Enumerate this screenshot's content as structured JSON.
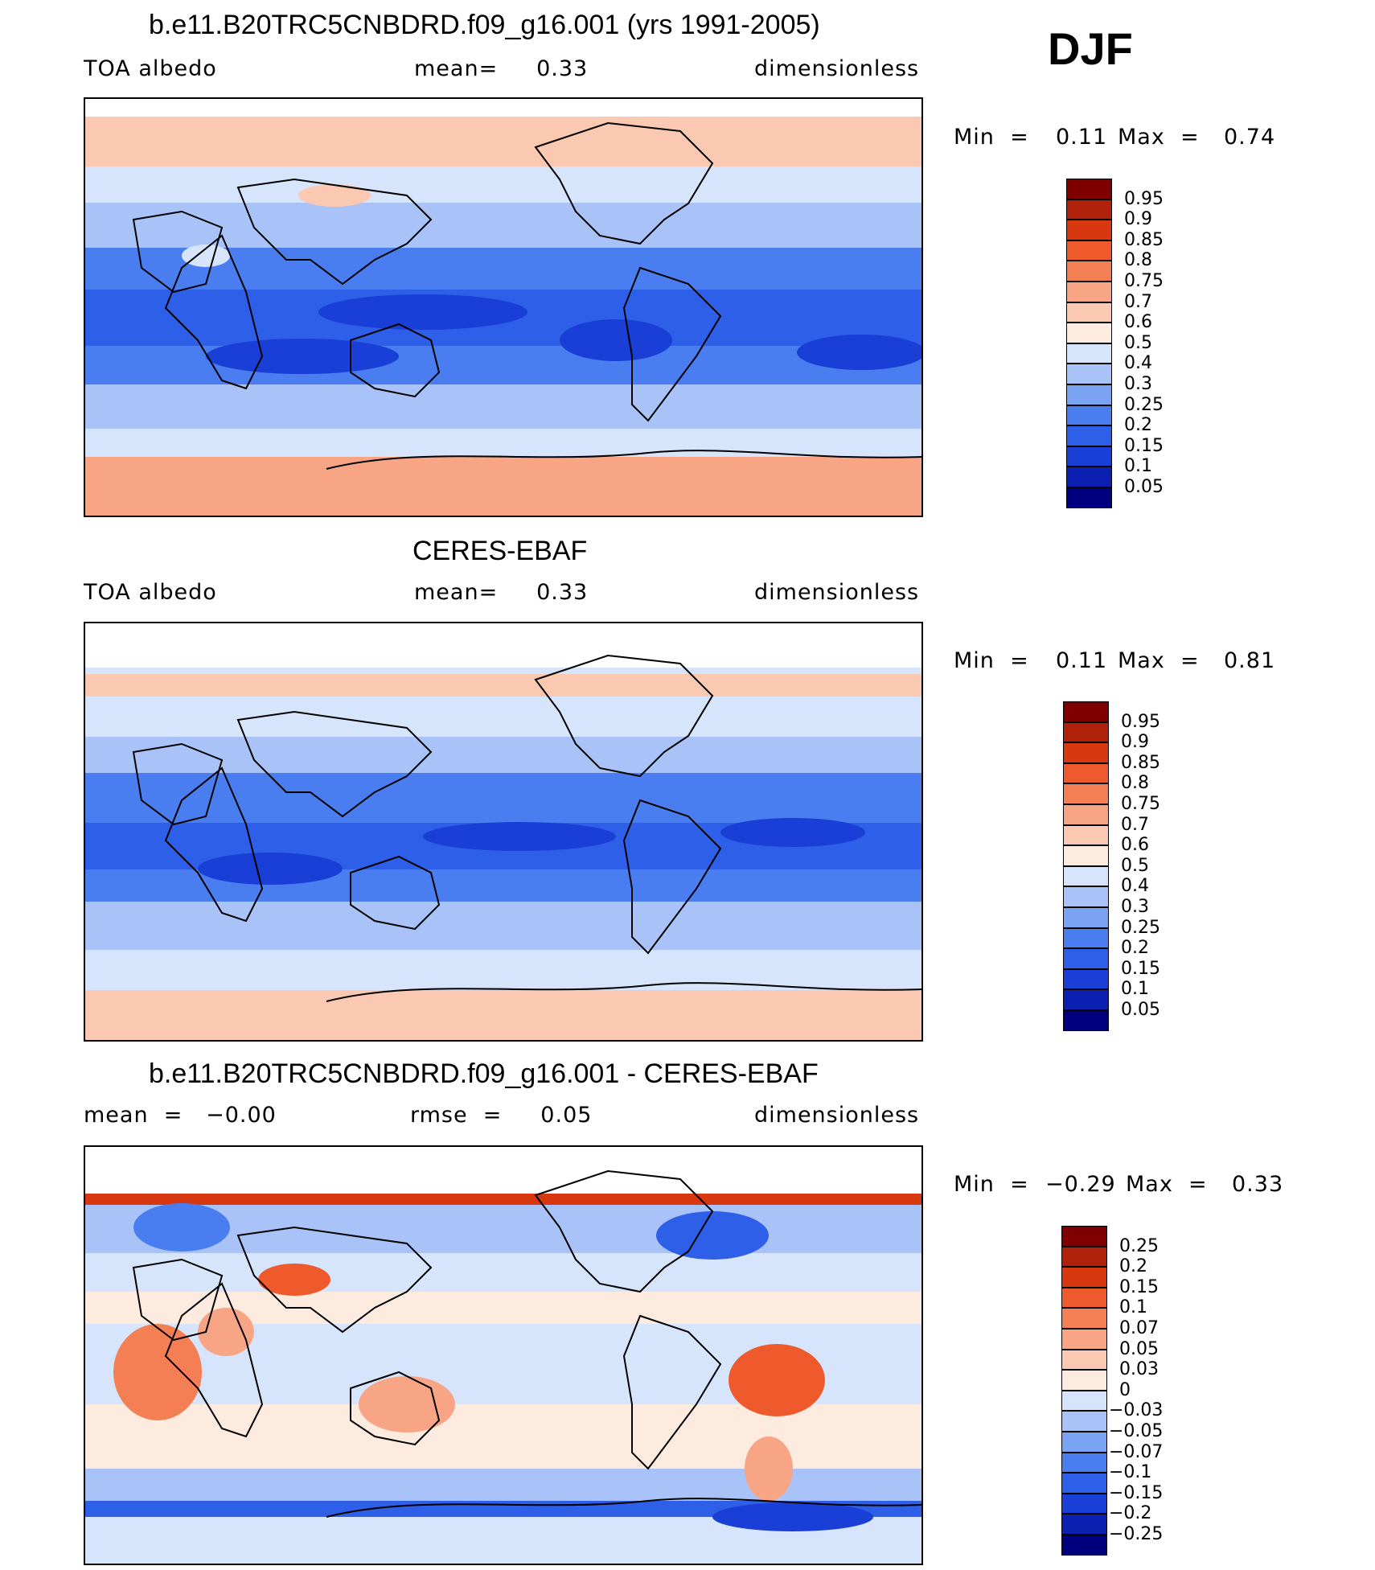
{
  "season": "DJF",
  "colors": {
    "abs": [
      "#00007f",
      "#0b1fb0",
      "#1a3fd6",
      "#2e5fe8",
      "#4a7ef0",
      "#7aa3f4",
      "#a9c3f8",
      "#d6e4fc",
      "#fdebe0",
      "#fbc9b2",
      "#f8a585",
      "#f57f55",
      "#ee5a2b",
      "#d8380f",
      "#b0200a",
      "#7f0000"
    ],
    "diff": [
      "#00007f",
      "#0b1fb0",
      "#1a3fd6",
      "#2e5fe8",
      "#4a7ef0",
      "#7aa3f4",
      "#a9c3f8",
      "#d6e4fc",
      "#fdebe0",
      "#fbc9b2",
      "#f8a585",
      "#f57f55",
      "#ee5a2b",
      "#d8380f",
      "#b0200a",
      "#7f0000"
    ]
  },
  "panels": [
    {
      "title": "b.e11.B20TRC5CNBDRD.f09_g16.001 (yrs 1991-2005)",
      "left_label": "TOA  albedo",
      "center_label": "mean=     0.33",
      "right_label": "dimensionless",
      "min_label": "Min  =",
      "min_value": "0.11",
      "max_label": "Max  =",
      "max_value": "0.74",
      "levels": [
        "0.95",
        "0.9",
        "0.85",
        "0.8",
        "0.75",
        "0.7",
        "0.6",
        "0.5",
        "0.4",
        "0.3",
        "0.25",
        "0.2",
        "0.15",
        "0.1",
        "0.05"
      ]
    },
    {
      "title": "CERES-EBAF",
      "left_label": "TOA  albedo",
      "center_label": "mean=     0.33",
      "right_label": "dimensionless",
      "min_label": "Min  =",
      "min_value": "0.11",
      "max_label": "Max  =",
      "max_value": "0.81",
      "levels": [
        "0.95",
        "0.9",
        "0.85",
        "0.8",
        "0.75",
        "0.7",
        "0.6",
        "0.5",
        "0.4",
        "0.3",
        "0.25",
        "0.2",
        "0.15",
        "0.1",
        "0.05"
      ]
    },
    {
      "title": "b.e11.B20TRC5CNBDRD.f09_g16.001 - CERES-EBAF",
      "left_label": "mean  =   −0.00",
      "center_label": "rmse  =     0.05",
      "right_label": "dimensionless",
      "min_label": "Min  =",
      "min_value": "−0.29",
      "max_label": "Max  =",
      "max_value": "0.33",
      "levels": [
        "0.25",
        "0.2",
        "0.15",
        "0.1",
        "0.07",
        "0.05",
        "0.03",
        "0",
        "−0.03",
        "−0.05",
        "−0.07",
        "−0.1",
        "−0.15",
        "−0.2",
        "−0.25"
      ]
    }
  ]
}
